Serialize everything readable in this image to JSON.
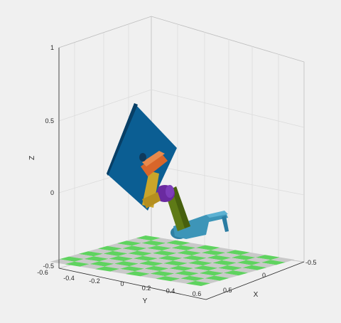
{
  "figure": {
    "background": "#f0f0f0",
    "axes": {
      "z_label": "Z",
      "y_label": "Y",
      "x_label": "X",
      "z_ticks": [
        "1",
        "0.5",
        "0",
        "-0.5"
      ],
      "y_ticks": [
        "-0.6",
        "-0.4",
        "-0.2",
        "0",
        "0.2",
        "0.4",
        "0.6"
      ],
      "x_ticks": [
        "-0.5",
        "0",
        "0.5"
      ]
    },
    "floor": {
      "green": "#5fd35f",
      "gray": "#c9c9c9"
    },
    "robot": {
      "plate": "#0b5e93",
      "base": "#3d95b8",
      "upper_arm": "#5e7a16",
      "elbow_joint": "#6a2aa0",
      "forearm": "#c9a52a",
      "wrist": "#d8662a"
    }
  }
}
